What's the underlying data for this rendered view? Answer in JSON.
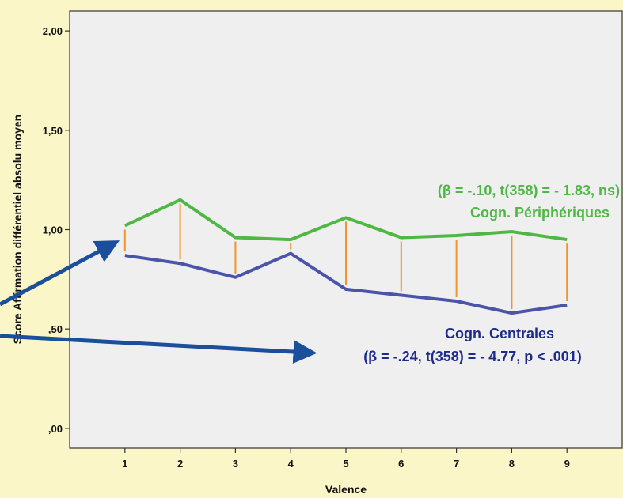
{
  "colors": {
    "background": "#fbf6c8",
    "plot_area": "#efefef",
    "peripheral_line": "#4fb845",
    "central_line": "#4a54a8",
    "difference_lines": "#f29426",
    "arrow": "#1b4f9c",
    "central_text": "#1e2b8c",
    "peripheral_text": "#4fb845"
  },
  "chart_data": {
    "type": "line",
    "xlabel": "Valence",
    "ylabel": "Score Affirmation différentiel absolu moyen",
    "x": [
      1,
      2,
      3,
      4,
      5,
      6,
      7,
      8,
      9
    ],
    "xlim": [
      0,
      10
    ],
    "ylim": [
      -0.1,
      2.1
    ],
    "y_ticks": [
      0.0,
      0.5,
      1.0,
      1.5,
      2.0
    ],
    "y_tick_labels": [
      ",00",
      ",50",
      "1,00",
      "1,50",
      "2,00"
    ],
    "x_tick_labels": [
      "1",
      "2",
      "3",
      "4",
      "5",
      "6",
      "7",
      "8",
      "9"
    ],
    "grid": false,
    "series": [
      {
        "key": "peripheral",
        "values": [
          1.02,
          1.15,
          0.96,
          0.95,
          1.06,
          0.96,
          0.97,
          0.99,
          0.95
        ]
      },
      {
        "key": "central",
        "values": [
          0.87,
          0.83,
          0.76,
          0.88,
          0.7,
          0.67,
          0.64,
          0.58,
          0.62
        ]
      }
    ],
    "annotations": {
      "peripheral_stat": "(β = -.10, t(358) = - 1.83, ns)",
      "peripheral_name": "Cogn. Périphériques",
      "central_name": "Cogn. Centrales",
      "central_stat": "(β = -.24, t(358) = - 4.77, p < .001)"
    }
  }
}
